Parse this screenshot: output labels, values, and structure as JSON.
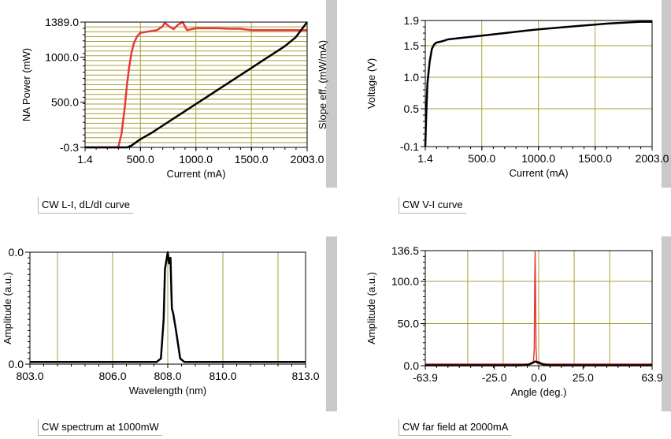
{
  "chart_data": [
    {
      "type": "line",
      "title": "CW L-I, dL/dI curve",
      "xlabel": "Current (mA)",
      "ylabel": "NA Power (mW)",
      "y2label": "Slope eff. (mW/mA)",
      "xlim": [
        1.4,
        2003.0
      ],
      "ylim": [
        -0.3,
        1389.0
      ],
      "xticks": [
        "1.4",
        "500.0",
        "1000.0",
        "1500.0",
        "2003.0"
      ],
      "yticks": [
        "-0.3",
        "500.0",
        "1000.0",
        "1389.0"
      ],
      "grid": true,
      "series": [
        {
          "color": "#e8393a",
          "x": [
            1.4,
            100,
            200,
            300,
            330,
            360,
            380,
            400,
            420,
            440,
            470,
            500,
            550,
            600,
            650,
            700,
            720,
            760,
            800,
            840,
            880,
            920,
            960,
            1000,
            1100,
            1200,
            1300,
            1400,
            1500,
            1600,
            1700,
            1800,
            1900,
            2003
          ],
          "y": [
            -0.3,
            -0.3,
            -0.3,
            -0.3,
            150,
            450,
            700,
            900,
            1050,
            1150,
            1230,
            1270,
            1280,
            1290,
            1300,
            1340,
            1380,
            1340,
            1310,
            1360,
            1390,
            1300,
            1310,
            1320,
            1320,
            1320,
            1315,
            1315,
            1300,
            1300,
            1300,
            1300,
            1300,
            1300
          ]
        },
        {
          "color": "#000000",
          "x": [
            1.4,
            100,
            200,
            300,
            380,
            420,
            500,
            600,
            700,
            800,
            900,
            1000,
            1100,
            1200,
            1300,
            1400,
            1500,
            1600,
            1700,
            1800,
            1900,
            2003
          ],
          "y": [
            -0.3,
            -0.3,
            -0.3,
            -0.3,
            -0.3,
            20,
            90,
            160,
            240,
            320,
            400,
            480,
            560,
            640,
            720,
            800,
            880,
            960,
            1040,
            1120,
            1220,
            1389
          ]
        }
      ]
    },
    {
      "type": "line",
      "title": "CW V-I curve",
      "xlabel": "Current (mA)",
      "ylabel": "Voltage (V)",
      "xlim": [
        1.4,
        2003.0
      ],
      "ylim": [
        -0.1,
        1.9
      ],
      "xticks": [
        "1.4",
        "500.0",
        "1000.0",
        "1500.0",
        "2003.0"
      ],
      "yticks": [
        "-0.1",
        "0.5",
        "1.0",
        "1.5",
        "1.9"
      ],
      "grid": true,
      "series": [
        {
          "color": "#000000",
          "x": [
            1.4,
            10,
            20,
            40,
            60,
            80,
            100,
            150,
            200,
            300,
            500,
            700,
            900,
            1000,
            1200,
            1400,
            1600,
            1800,
            1900,
            2003
          ],
          "y": [
            -0.1,
            0.4,
            0.9,
            1.25,
            1.45,
            1.52,
            1.55,
            1.57,
            1.6,
            1.62,
            1.66,
            1.7,
            1.74,
            1.76,
            1.79,
            1.82,
            1.85,
            1.87,
            1.88,
            1.88
          ]
        }
      ]
    },
    {
      "type": "line",
      "title": "CW spectrum at 1000mW",
      "xlabel": "Wavelength (nm)",
      "ylabel": "Amplitude (a.u.)",
      "xlim": [
        803.0,
        813.0
      ],
      "ylim": [
        0.0,
        1.0
      ],
      "xticks": [
        "803.0",
        "806.0",
        "808.0",
        "810.0",
        "813.0"
      ],
      "yticks": [
        "0.0",
        "0.0"
      ],
      "grid": true,
      "series": [
        {
          "color": "#000000",
          "x": [
            803.0,
            804.0,
            805.0,
            806.0,
            807.0,
            807.6,
            807.75,
            807.85,
            807.9,
            808.0,
            808.05,
            808.1,
            808.15,
            808.2,
            808.3,
            808.45,
            808.6,
            809.0,
            810.0,
            811.0,
            812.0,
            813.0
          ],
          "y": [
            0.02,
            0.02,
            0.02,
            0.02,
            0.02,
            0.02,
            0.05,
            0.4,
            0.85,
            1.0,
            0.9,
            0.95,
            0.5,
            0.45,
            0.3,
            0.05,
            0.02,
            0.02,
            0.02,
            0.02,
            0.02,
            0.02
          ]
        }
      ]
    },
    {
      "type": "line",
      "title": "CW far field at 2000mA",
      "xlabel": "Angle (deg.)",
      "ylabel": "Amplitude (a.u.)",
      "xlim": [
        -63.9,
        63.9
      ],
      "ylim": [
        0.0,
        136.5
      ],
      "xticks": [
        "-63.9",
        "-25.0",
        "0.0",
        "25.0",
        "63.9"
      ],
      "yticks": [
        "0.0",
        "50.0",
        "100.0",
        "136.5"
      ],
      "grid": true,
      "series": [
        {
          "color": "#e8393a",
          "x": [
            -63.9,
            -30,
            -10,
            -4,
            -3,
            -2.5,
            -2.2,
            -2.0,
            -1.8,
            -1.5,
            -1.0,
            0,
            10,
            30,
            63.9
          ],
          "y": [
            2,
            2,
            2,
            2,
            3,
            20,
            100,
            135,
            100,
            20,
            3,
            2,
            2,
            2,
            2
          ]
        },
        {
          "color": "#000000",
          "x": [
            -63.9,
            -30,
            -10,
            -6,
            -4,
            -2,
            0,
            2,
            4,
            6,
            10,
            30,
            63.9
          ],
          "y": [
            0.5,
            0.5,
            0.5,
            1,
            3,
            5,
            4,
            2,
            1,
            0.5,
            0.5,
            0.5,
            0.5
          ]
        }
      ]
    }
  ]
}
